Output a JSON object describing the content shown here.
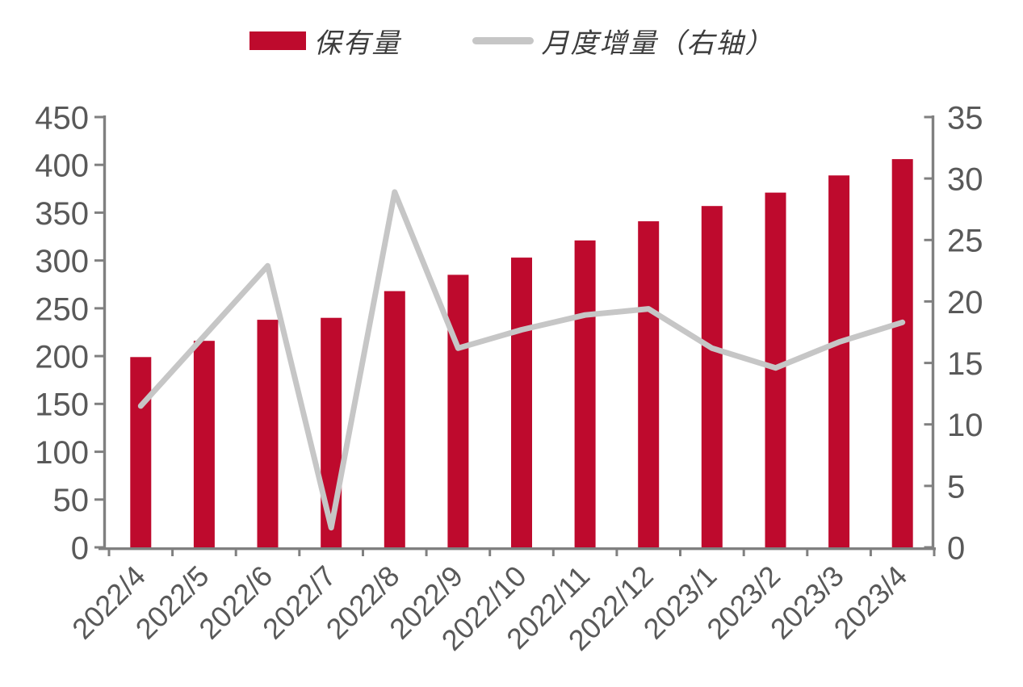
{
  "page": {
    "background": "#ffffff"
  },
  "legend": {
    "items": [
      {
        "label": "保有量",
        "swatch": "bar-swatch",
        "color": "#be0a2d"
      },
      {
        "label": "月度增量（右轴）",
        "swatch": "line-swatch",
        "color": "#c6c6c6"
      }
    ]
  },
  "chart_data": {
    "type": "bar",
    "subtype": "combo-bar-line-dual-axis",
    "title": "",
    "categories": [
      "2022/4",
      "2022/5",
      "2022/6",
      "2022/7",
      "2022/8",
      "2022/9",
      "2022/10",
      "2022/11",
      "2022/12",
      "2023/1",
      "2023/2",
      "2023/3",
      "2023/4"
    ],
    "series": [
      {
        "name": "保有量",
        "type": "bar",
        "axis": "left",
        "color": "#be0a2d",
        "values": [
          199,
          216,
          238,
          240,
          268,
          285,
          303,
          321,
          341,
          357,
          371,
          389,
          406
        ]
      },
      {
        "name": "月度增量（右轴）",
        "type": "line",
        "axis": "right",
        "color": "#c6c6c6",
        "values": [
          11.5,
          17.2,
          22.9,
          1.6,
          28.9,
          16.2,
          17.7,
          18.9,
          19.4,
          16.2,
          14.6,
          16.7,
          18.3
        ]
      }
    ],
    "left_axis": {
      "min": 0,
      "max": 450,
      "step": 50,
      "tick_labels": [
        "0",
        "50",
        "100",
        "150",
        "200",
        "250",
        "300",
        "350",
        "400",
        "450"
      ]
    },
    "right_axis": {
      "min": 0,
      "max": 35,
      "step": 5,
      "tick_labels": [
        "0",
        "5",
        "10",
        "15",
        "20",
        "25",
        "30",
        "35"
      ]
    },
    "xlabel": "",
    "ylabel": "",
    "grid": false,
    "legend_position": "top",
    "colors": {
      "axis_line": "#808080",
      "tick_label": "#595959"
    }
  }
}
